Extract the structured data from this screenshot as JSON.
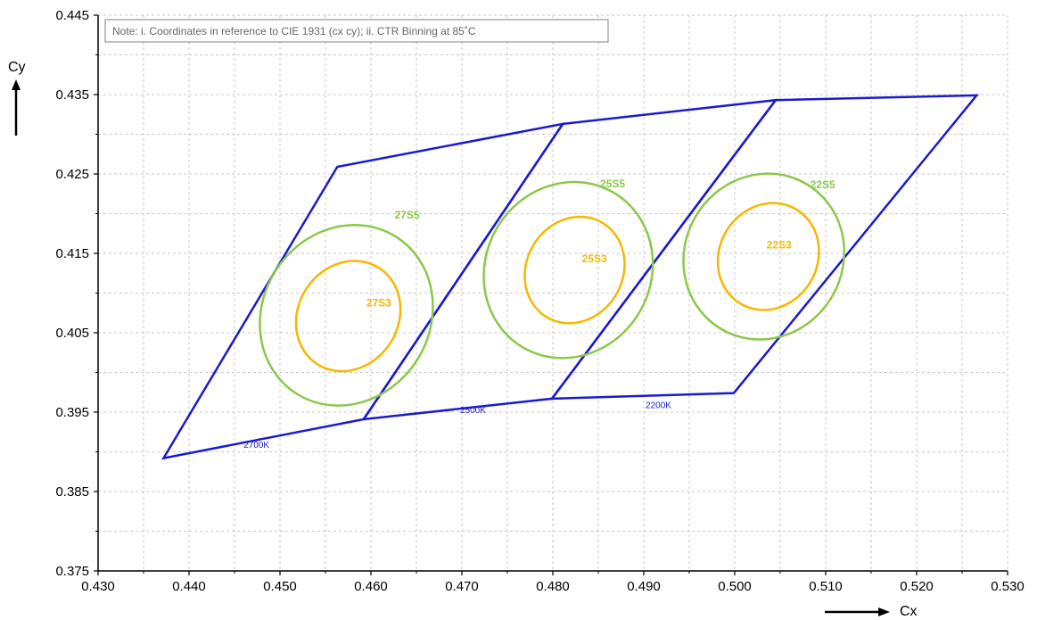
{
  "chart_data": {
    "type": "scatter",
    "title": "",
    "note": "Note: i. Coordinates in reference to CIE 1931 (cx cy); ii. CTR Binning at 85˚C",
    "xlabel": "Cx",
    "ylabel": "Cy",
    "xlim": [
      0.43,
      0.53
    ],
    "ylim": [
      0.375,
      0.445
    ],
    "x_ticks": [
      "0.430",
      "0.440",
      "0.450",
      "0.460",
      "0.470",
      "0.480",
      "0.490",
      "0.500",
      "0.510",
      "0.520",
      "0.530"
    ],
    "y_ticks": [
      "0.375",
      "0.385",
      "0.395",
      "0.405",
      "0.415",
      "0.425",
      "0.435",
      "0.445"
    ],
    "grid": true,
    "colors": {
      "quad": "#1a1ad0",
      "s5": "#8cc84b",
      "s3": "#f5b800",
      "grid": "#c8c8c8"
    },
    "quadrangles": [
      {
        "label": "2700K",
        "label_pos": [
          0.446,
          0.3905
        ],
        "points": [
          [
            0.4372,
            0.3892
          ],
          [
            0.4563,
            0.4259
          ],
          [
            0.4811,
            0.4313
          ],
          [
            0.4592,
            0.3941
          ]
        ]
      },
      {
        "label": "2500K",
        "label_pos": [
          0.4698,
          0.3949
        ],
        "points": [
          [
            0.4592,
            0.3941
          ],
          [
            0.4811,
            0.4313
          ],
          [
            0.5045,
            0.4343
          ],
          [
            0.4799,
            0.3967
          ]
        ]
      },
      {
        "label": "2200K",
        "label_pos": [
          0.4902,
          0.3955
        ],
        "points": [
          [
            0.4799,
            0.3967
          ],
          [
            0.5045,
            0.4343
          ],
          [
            0.5266,
            0.4349
          ],
          [
            0.4999,
            0.3974
          ]
        ]
      }
    ],
    "ellipses": [
      {
        "bin": "27S5",
        "center": [
          0.4573,
          0.4072
        ],
        "rx": 0.0092,
        "ry": 0.0117,
        "angle_deg": 33,
        "color": "#8cc84b",
        "label": "27S5",
        "label_pos": [
          0.4626,
          0.4194
        ]
      },
      {
        "bin": "27S3",
        "center": [
          0.4575,
          0.4071
        ],
        "rx": 0.0055,
        "ry": 0.0072,
        "angle_deg": 33,
        "color": "#f5b800",
        "label": "27S3",
        "label_pos": [
          0.4595,
          0.4083
        ]
      },
      {
        "bin": "25S5",
        "center": [
          0.4817,
          0.4129
        ],
        "rx": 0.0091,
        "ry": 0.0113,
        "angle_deg": 30,
        "color": "#8cc84b",
        "label": "25S5",
        "label_pos": [
          0.4852,
          0.4233
        ]
      },
      {
        "bin": "25S3",
        "center": [
          0.4824,
          0.4129
        ],
        "rx": 0.0053,
        "ry": 0.0069,
        "angle_deg": 30,
        "color": "#f5b800",
        "label": "25S3",
        "label_pos": [
          0.4832,
          0.4139
        ]
      },
      {
        "bin": "22S5",
        "center": [
          0.5032,
          0.4146
        ],
        "rx": 0.0087,
        "ry": 0.0106,
        "angle_deg": 30,
        "color": "#8cc84b",
        "label": "22S5",
        "label_pos": [
          0.5083,
          0.4232
        ]
      },
      {
        "bin": "22S3",
        "center": [
          0.5037,
          0.4146
        ],
        "rx": 0.0054,
        "ry": 0.0069,
        "angle_deg": 30,
        "color": "#f5b800",
        "label": "22S3",
        "label_pos": [
          0.5035,
          0.4156
        ]
      }
    ]
  }
}
